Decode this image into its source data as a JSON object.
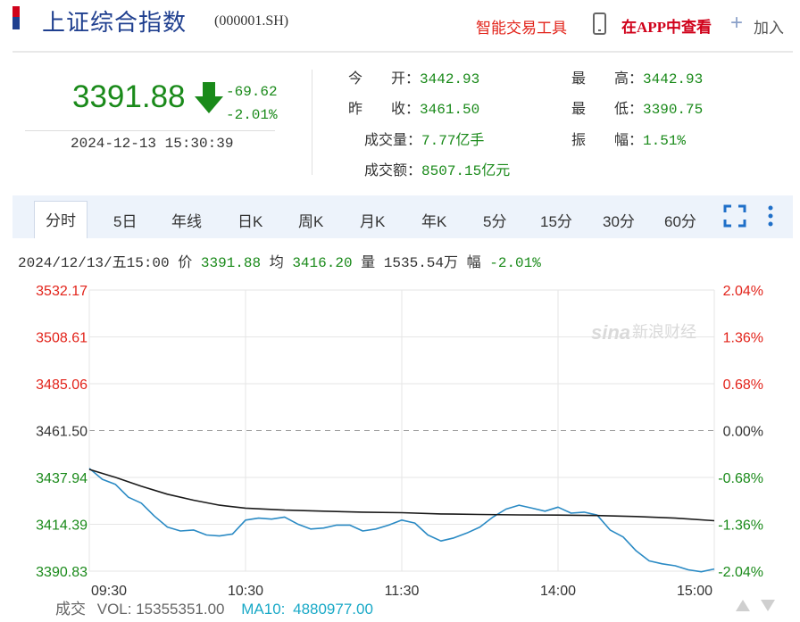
{
  "header": {
    "title": "上证综合指数",
    "code": "(000001.SH)",
    "tools_label": "智能交易工具",
    "app_label": "在APP中查看",
    "add_label": "加入"
  },
  "quote": {
    "price": "3391.88",
    "change": "-69.62",
    "change_pct": "-2.01%",
    "datetime": "2024-12-13 15:30:39"
  },
  "stats": [
    {
      "label": "今　　开：",
      "value": "3442.93"
    },
    {
      "label": "昨　　收：",
      "value": "3461.50"
    },
    {
      "label": "成交量：",
      "value": "7.77亿手"
    },
    {
      "label": "成交额：",
      "value": "8507.15亿元"
    },
    {
      "label": "最　　高：",
      "value": "3442.93"
    },
    {
      "label": "最　　低：",
      "value": "3390.75"
    },
    {
      "label": "振　　幅：",
      "value": "1.51%"
    }
  ],
  "tabs": [
    "分时",
    "5日",
    "年线",
    "日K",
    "周K",
    "月K",
    "年K",
    "5分",
    "15分",
    "30分",
    "60分"
  ],
  "active_tab": 0,
  "info": {
    "date": "2024/12/13/五15:00",
    "price_label": "价",
    "price": "3391.88",
    "avg_label": "均",
    "avg": "3416.20",
    "vol_label": "量",
    "vol": "1535.54万",
    "amp_label": "幅",
    "amp": "-2.01%"
  },
  "volume": {
    "label": "成交",
    "vol_key": "VOL:",
    "vol_value": "15355351.00",
    "ma_key": "MA10:",
    "ma_value": "4880977.00"
  },
  "watermark": "新浪财经",
  "colors": {
    "up": "#e2231a",
    "down": "#1a8a1a",
    "price_line": "#2a8ac4",
    "avg_line": "#1a1a1a",
    "accent": "#1f3f8f"
  },
  "chart_data": {
    "type": "line",
    "x_ticks": [
      "09:30",
      "10:30",
      "11:30",
      "14:00",
      "15:00"
    ],
    "y_left_ticks": [
      "3532.17",
      "3508.61",
      "3485.06",
      "3461.50",
      "3437.94",
      "3414.39",
      "3390.83"
    ],
    "y_right_ticks": [
      "2.04%",
      "1.36%",
      "0.68%",
      "0.00%",
      "-0.68%",
      "-1.36%",
      "-2.04%"
    ],
    "y_range": [
      3390.83,
      3532.17
    ],
    "prev_close": 3461.5,
    "grid": true,
    "series": [
      {
        "role": "price",
        "x": [
          "09:30",
          "09:35",
          "09:40",
          "09:45",
          "09:50",
          "09:55",
          "10:00",
          "10:05",
          "10:10",
          "10:15",
          "10:20",
          "10:25",
          "10:30",
          "10:35",
          "10:40",
          "10:45",
          "10:50",
          "10:55",
          "11:00",
          "11:05",
          "11:10",
          "11:15",
          "11:20",
          "11:25",
          "11:30",
          "13:05",
          "13:10",
          "13:15",
          "13:20",
          "13:25",
          "13:30",
          "13:35",
          "13:40",
          "13:45",
          "13:50",
          "13:55",
          "14:00",
          "14:05",
          "14:10",
          "14:15",
          "14:20",
          "14:25",
          "14:30",
          "14:35",
          "14:40",
          "14:45",
          "14:50",
          "14:55",
          "15:00"
        ],
        "values": [
          3442.5,
          3437.0,
          3434.5,
          3428.0,
          3425.0,
          3418.5,
          3413.0,
          3411.0,
          3411.5,
          3409.0,
          3408.5,
          3409.5,
          3416.5,
          3417.5,
          3417.0,
          3418.0,
          3414.5,
          3412.0,
          3412.5,
          3414.0,
          3414.0,
          3411.0,
          3412.0,
          3414.0,
          3416.5,
          3415.0,
          3409.0,
          3406.0,
          3407.5,
          3410.0,
          3413.0,
          3418.0,
          3422.0,
          3424.0,
          3422.5,
          3421.0,
          3423.0,
          3420.0,
          3420.5,
          3419.0,
          3411.5,
          3408.0,
          3401.0,
          3396.0,
          3394.5,
          3393.5,
          3391.5,
          3390.5,
          3391.9
        ]
      },
      {
        "role": "average",
        "x": [
          "09:30",
          "09:40",
          "09:50",
          "10:00",
          "10:10",
          "10:20",
          "10:30",
          "10:45",
          "11:00",
          "11:15",
          "11:30",
          "13:15",
          "13:30",
          "13:45",
          "14:00",
          "14:15",
          "14:30",
          "14:45",
          "15:00"
        ],
        "values": [
          3442.0,
          3438.0,
          3433.5,
          3429.5,
          3426.5,
          3424.0,
          3422.5,
          3421.5,
          3421.0,
          3420.5,
          3420.2,
          3419.6,
          3419.3,
          3419.1,
          3419.0,
          3418.8,
          3418.3,
          3417.5,
          3416.2
        ]
      }
    ]
  }
}
